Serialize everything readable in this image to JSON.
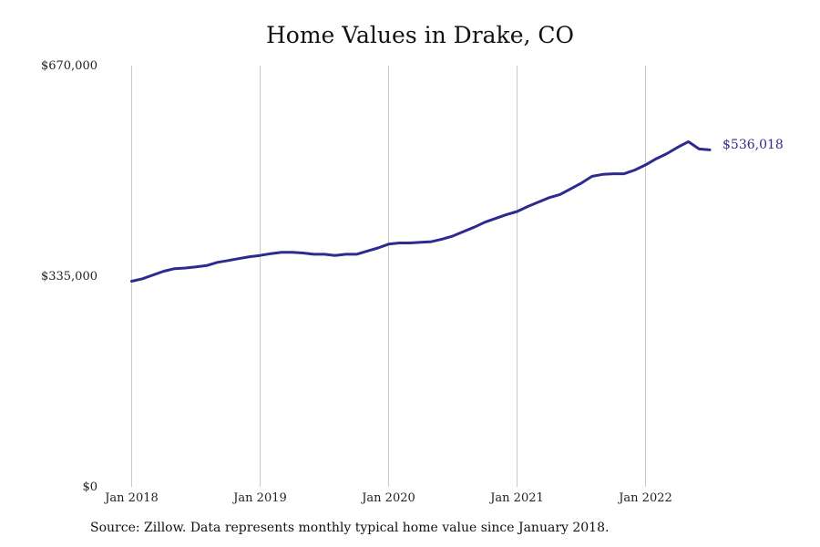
{
  "chart_data": {
    "type": "line",
    "title": "Home Values in Drake, CO",
    "xlabel": "",
    "ylabel": "",
    "ylim": [
      0,
      670000
    ],
    "y_ticks": [
      0,
      335000,
      670000
    ],
    "y_tick_labels": [
      "$0",
      "$335,000",
      "$670,000"
    ],
    "x_ticks": [
      "2018-01",
      "2019-01",
      "2020-01",
      "2021-01",
      "2022-01"
    ],
    "x_tick_labels": [
      "Jan 2018",
      "Jan 2019",
      "Jan 2020",
      "Jan 2021",
      "Jan 2022"
    ],
    "grid": "vertical",
    "line_color": "#2e2a8f",
    "series": [
      {
        "end_label": "$536,018",
        "x": [
          "2018-01",
          "2018-02",
          "2018-03",
          "2018-04",
          "2018-05",
          "2018-06",
          "2018-07",
          "2018-08",
          "2018-09",
          "2018-10",
          "2018-11",
          "2018-12",
          "2019-01",
          "2019-02",
          "2019-03",
          "2019-04",
          "2019-05",
          "2019-06",
          "2019-07",
          "2019-08",
          "2019-09",
          "2019-10",
          "2019-11",
          "2019-12",
          "2020-01",
          "2020-02",
          "2020-03",
          "2020-04",
          "2020-05",
          "2020-06",
          "2020-07",
          "2020-08",
          "2020-09",
          "2020-10",
          "2020-11",
          "2020-12",
          "2021-01",
          "2021-02",
          "2021-03",
          "2021-04",
          "2021-05",
          "2021-06",
          "2021-07",
          "2021-08",
          "2021-09",
          "2021-10",
          "2021-11",
          "2021-12",
          "2022-01",
          "2022-02",
          "2022-03",
          "2022-04",
          "2022-05",
          "2022-06",
          "2022-07"
        ],
        "values": [
          327000,
          331000,
          337000,
          343000,
          347000,
          348000,
          350000,
          352000,
          357000,
          360000,
          363000,
          366000,
          368000,
          371000,
          373000,
          373000,
          372000,
          370000,
          370000,
          368000,
          370000,
          370000,
          375000,
          380000,
          386000,
          388000,
          388000,
          389000,
          390000,
          394000,
          399000,
          406000,
          413000,
          421000,
          427000,
          433000,
          438000,
          446000,
          453000,
          460000,
          465000,
          474000,
          483000,
          494000,
          497000,
          498000,
          498000,
          504000,
          512000,
          522000,
          530000,
          540000,
          549000,
          537500,
          536018
        ]
      }
    ]
  },
  "footer": {
    "source": "Source: Zillow. Data represents monthly typical home value since January 2018."
  }
}
